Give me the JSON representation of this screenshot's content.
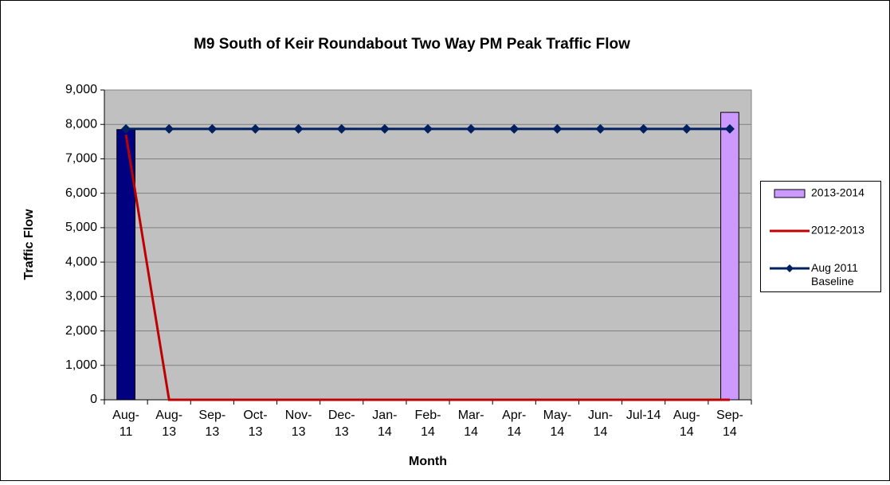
{
  "chart_data": {
    "type": "bar",
    "title": "M9 South of Keir Roundabout Two Way PM Peak Traffic Flow",
    "x_label": "Month",
    "y_label": "Traffic Flow",
    "categories": [
      "Aug-11",
      "Aug-13",
      "Sep-13",
      "Oct-13",
      "Nov-13",
      "Dec-13",
      "Jan-14",
      "Feb-14",
      "Mar-14",
      "Apr-14",
      "May-14",
      "Jun-14",
      "Jul-14",
      "Aug-14",
      "Sep-14"
    ],
    "series": [
      {
        "name": "2013-2014",
        "type": "bar",
        "color": "#cc99ff",
        "colors": [
          "#000080",
          "#cc99ff",
          "#cc99ff",
          "#cc99ff",
          "#cc99ff",
          "#cc99ff",
          "#cc99ff",
          "#cc99ff",
          "#cc99ff",
          "#cc99ff",
          "#cc99ff",
          "#cc99ff",
          "#cc99ff",
          "#cc99ff",
          "#cc99ff"
        ],
        "values": [
          7850,
          null,
          null,
          null,
          null,
          null,
          null,
          null,
          null,
          null,
          null,
          null,
          null,
          null,
          8350
        ]
      },
      {
        "name": "2012-2013",
        "type": "line",
        "color": "#c00000",
        "values": [
          7700,
          0,
          0,
          0,
          0,
          0,
          0,
          0,
          0,
          0,
          0,
          0,
          0,
          0,
          0
        ]
      },
      {
        "name": "Aug 2011 Baseline",
        "type": "line",
        "color": "#002060",
        "marker": "diamond",
        "values": [
          7870,
          7870,
          7870,
          7870,
          7870,
          7870,
          7870,
          7870,
          7870,
          7870,
          7870,
          7870,
          7870,
          7870,
          7870
        ]
      }
    ],
    "ylim": [
      0,
      9000
    ],
    "yticks": [
      0,
      {
        "value": 1000,
        "label": "1,000"
      },
      {
        "value": 2000,
        "label": "2,000"
      },
      {
        "value": 3000,
        "label": "3,000"
      },
      {
        "value": 4000,
        "label": "4,000"
      },
      {
        "value": 5000,
        "label": "5,000"
      },
      {
        "value": 6000,
        "label": "6,000"
      },
      {
        "value": 7000,
        "label": "7,000"
      },
      {
        "value": 8000,
        "label": "8,000"
      },
      {
        "value": 9000,
        "label": "9,000"
      }
    ],
    "grid": true,
    "legend": "right",
    "plot_background": "#c0c0c0"
  }
}
